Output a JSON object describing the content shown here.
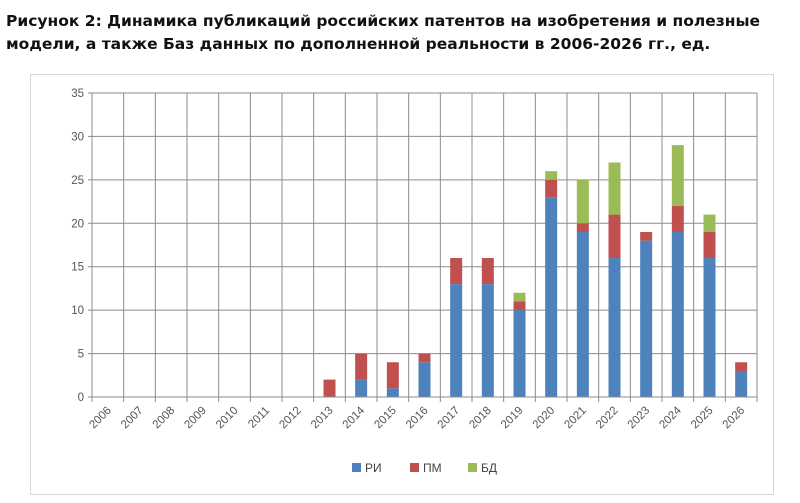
{
  "title": "Рисунок 2: Динамика публикаций российских патентов на изобретения и полезные\n модели, а также Баз данных по дополненной реальности в 2006-2026 гг., ед.",
  "chart_data": {
    "type": "bar",
    "stacked": true,
    "categories": [
      "2006",
      "2007",
      "2008",
      "2009",
      "2010",
      "2011",
      "2012",
      "2013",
      "2014",
      "2015",
      "2016",
      "2017",
      "2018",
      "2019",
      "2020",
      "2021",
      "2022",
      "2023",
      "2024",
      "2025",
      "2026"
    ],
    "series": [
      {
        "name": "РИ",
        "color": "#4f81bd",
        "values": [
          0,
          0,
          0,
          0,
          0,
          0,
          0,
          0,
          2,
          1,
          4,
          13,
          13,
          10,
          23,
          19,
          16,
          18,
          19,
          16,
          3
        ]
      },
      {
        "name": "ПМ",
        "color": "#c0504d",
        "values": [
          0,
          0,
          0,
          0,
          0,
          0,
          0,
          2,
          3,
          3,
          1,
          3,
          3,
          1,
          2,
          1,
          5,
          1,
          3,
          3,
          1
        ]
      },
      {
        "name": "БД",
        "color": "#9bbb59",
        "values": [
          0,
          0,
          0,
          0,
          0,
          0,
          0,
          0,
          0,
          0,
          0,
          0,
          0,
          1,
          1,
          5,
          6,
          0,
          7,
          2,
          0
        ]
      }
    ],
    "ylim": [
      0,
      35
    ],
    "yticks": [
      0,
      5,
      10,
      15,
      20,
      25,
      30,
      35
    ],
    "grid": true,
    "legend_position": "bottom"
  }
}
